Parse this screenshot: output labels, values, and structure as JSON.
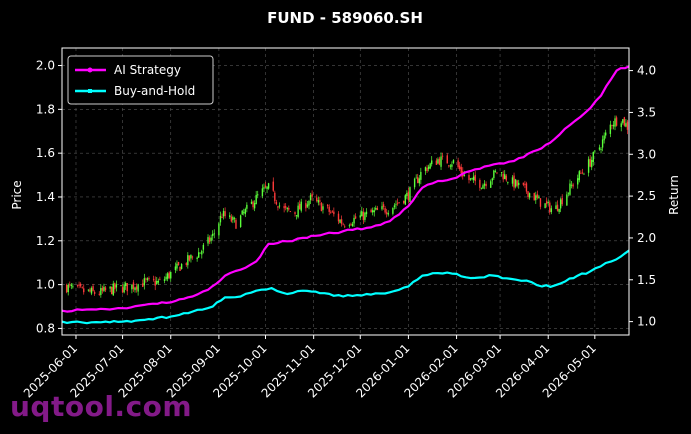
{
  "chart_data": {
    "type": "line",
    "title": "FUND - 589060.SH",
    "ylabel_left": "Price",
    "ylabel_right": "Return",
    "ylim_left": [
      0.77,
      2.08
    ],
    "ylim_right": [
      0.84,
      4.27
    ],
    "yticks_left": [
      0.8,
      1.0,
      1.2,
      1.4,
      1.6,
      1.8,
      2.0
    ],
    "yticks_left_labels": [
      "0.8",
      "1.0",
      "1.2",
      "1.4",
      "1.6",
      "1.8",
      "2.0"
    ],
    "yticks_right": [
      1.0,
      1.5,
      2.0,
      2.5,
      3.0,
      3.5,
      4.0
    ],
    "yticks_right_labels": [
      "1.0",
      "1.5",
      "2.0",
      "2.5",
      "3.0",
      "3.5",
      "4.0"
    ],
    "x_range": [
      "2025-05-23",
      "2026-05-23"
    ],
    "xticks": [
      "2025-06-01",
      "2025-07-01",
      "2025-08-01",
      "2025-09-01",
      "2025-10-01",
      "2025-11-01",
      "2025-12-01",
      "2026-01-01",
      "2026-02-01",
      "2026-03-01",
      "2026-04-01",
      "2026-05-01"
    ],
    "grid": true,
    "legend_position": "top-left",
    "colors": {
      "strategy": "#ff00ff",
      "buyhold": "#00ffff",
      "up": "#5bff3a",
      "down": "#ff3a3a"
    },
    "price_candles": {
      "description": "daily candlesticks, close values by date (left axis)",
      "points": [
        [
          "2025-05-26",
          0.99
        ],
        [
          "2025-06-05",
          0.97
        ],
        [
          "2025-06-15",
          0.96
        ],
        [
          "2025-06-25",
          0.98
        ],
        [
          "2025-07-05",
          0.99
        ],
        [
          "2025-07-15",
          1.01
        ],
        [
          "2025-07-25",
          1.01
        ],
        [
          "2025-08-01",
          1.05
        ],
        [
          "2025-08-10",
          1.1
        ],
        [
          "2025-08-20",
          1.15
        ],
        [
          "2025-08-28",
          1.22
        ],
        [
          "2025-09-03",
          1.32
        ],
        [
          "2025-09-12",
          1.28
        ],
        [
          "2025-09-20",
          1.35
        ],
        [
          "2025-09-28",
          1.42
        ],
        [
          "2025-10-03",
          1.44
        ],
        [
          "2025-10-12",
          1.34
        ],
        [
          "2025-10-20",
          1.33
        ],
        [
          "2025-10-30",
          1.39
        ],
        [
          "2025-11-10",
          1.34
        ],
        [
          "2025-11-20",
          1.28
        ],
        [
          "2025-12-01",
          1.31
        ],
        [
          "2025-12-10",
          1.33
        ],
        [
          "2025-12-20",
          1.35
        ],
        [
          "2026-01-01",
          1.41
        ],
        [
          "2026-01-10",
          1.52
        ],
        [
          "2026-01-20",
          1.57
        ],
        [
          "2026-01-30",
          1.56
        ],
        [
          "2026-02-08",
          1.48
        ],
        [
          "2026-02-18",
          1.46
        ],
        [
          "2026-02-28",
          1.52
        ],
        [
          "2026-03-08",
          1.47
        ],
        [
          "2026-03-18",
          1.43
        ],
        [
          "2026-03-28",
          1.37
        ],
        [
          "2026-04-05",
          1.34
        ],
        [
          "2026-04-12",
          1.41
        ],
        [
          "2026-04-20",
          1.49
        ],
        [
          "2026-04-28",
          1.56
        ],
        [
          "2026-05-05",
          1.64
        ],
        [
          "2026-05-12",
          1.74
        ],
        [
          "2026-05-18",
          1.76
        ],
        [
          "2026-05-23",
          1.71
        ]
      ]
    },
    "series": [
      {
        "name": "AI Strategy",
        "axis": "right",
        "points": [
          [
            "2025-05-23",
            1.13
          ],
          [
            "2025-06-05",
            1.14
          ],
          [
            "2025-06-20",
            1.15
          ],
          [
            "2025-07-01",
            1.16
          ],
          [
            "2025-07-15",
            1.2
          ],
          [
            "2025-08-01",
            1.23
          ],
          [
            "2025-08-15",
            1.3
          ],
          [
            "2025-08-25",
            1.38
          ],
          [
            "2025-09-05",
            1.55
          ],
          [
            "2025-09-15",
            1.62
          ],
          [
            "2025-09-25",
            1.72
          ],
          [
            "2025-10-03",
            1.93
          ],
          [
            "2025-10-15",
            1.96
          ],
          [
            "2025-10-25",
            2.0
          ],
          [
            "2025-11-05",
            2.03
          ],
          [
            "2025-11-20",
            2.08
          ],
          [
            "2025-12-05",
            2.12
          ],
          [
            "2025-12-20",
            2.2
          ],
          [
            "2026-01-01",
            2.38
          ],
          [
            "2026-01-10",
            2.6
          ],
          [
            "2026-01-20",
            2.68
          ],
          [
            "2026-02-01",
            2.72
          ],
          [
            "2026-02-10",
            2.8
          ],
          [
            "2026-02-25",
            2.88
          ],
          [
            "2026-03-10",
            2.92
          ],
          [
            "2026-03-25",
            3.05
          ],
          [
            "2026-04-05",
            3.18
          ],
          [
            "2026-04-15",
            3.35
          ],
          [
            "2026-04-25",
            3.5
          ],
          [
            "2026-05-05",
            3.7
          ],
          [
            "2026-05-15",
            4.0
          ],
          [
            "2026-05-23",
            4.05
          ]
        ]
      },
      {
        "name": "Buy-and-Hold",
        "axis": "right",
        "points": [
          [
            "2025-05-23",
            1.0
          ],
          [
            "2025-06-05",
            0.99
          ],
          [
            "2025-06-20",
            1.0
          ],
          [
            "2025-07-01",
            1.0
          ],
          [
            "2025-07-15",
            1.02
          ],
          [
            "2025-08-01",
            1.06
          ],
          [
            "2025-08-15",
            1.12
          ],
          [
            "2025-08-28",
            1.18
          ],
          [
            "2025-09-05",
            1.29
          ],
          [
            "2025-09-15",
            1.3
          ],
          [
            "2025-09-25",
            1.37
          ],
          [
            "2025-10-05",
            1.4
          ],
          [
            "2025-10-15",
            1.33
          ],
          [
            "2025-10-25",
            1.37
          ],
          [
            "2025-11-05",
            1.34
          ],
          [
            "2025-11-20",
            1.3
          ],
          [
            "2025-12-05",
            1.33
          ],
          [
            "2025-12-20",
            1.35
          ],
          [
            "2026-01-01",
            1.42
          ],
          [
            "2026-01-10",
            1.55
          ],
          [
            "2026-01-20",
            1.58
          ],
          [
            "2026-02-01",
            1.57
          ],
          [
            "2026-02-10",
            1.52
          ],
          [
            "2026-02-25",
            1.55
          ],
          [
            "2026-03-08",
            1.51
          ],
          [
            "2026-03-18",
            1.49
          ],
          [
            "2026-03-28",
            1.42
          ],
          [
            "2026-04-05",
            1.43
          ],
          [
            "2026-04-12",
            1.48
          ],
          [
            "2026-04-20",
            1.55
          ],
          [
            "2026-04-28",
            1.6
          ],
          [
            "2026-05-08",
            1.7
          ],
          [
            "2026-05-18",
            1.78
          ],
          [
            "2026-05-23",
            1.85
          ]
        ]
      }
    ]
  },
  "watermark": "uqtool.com"
}
